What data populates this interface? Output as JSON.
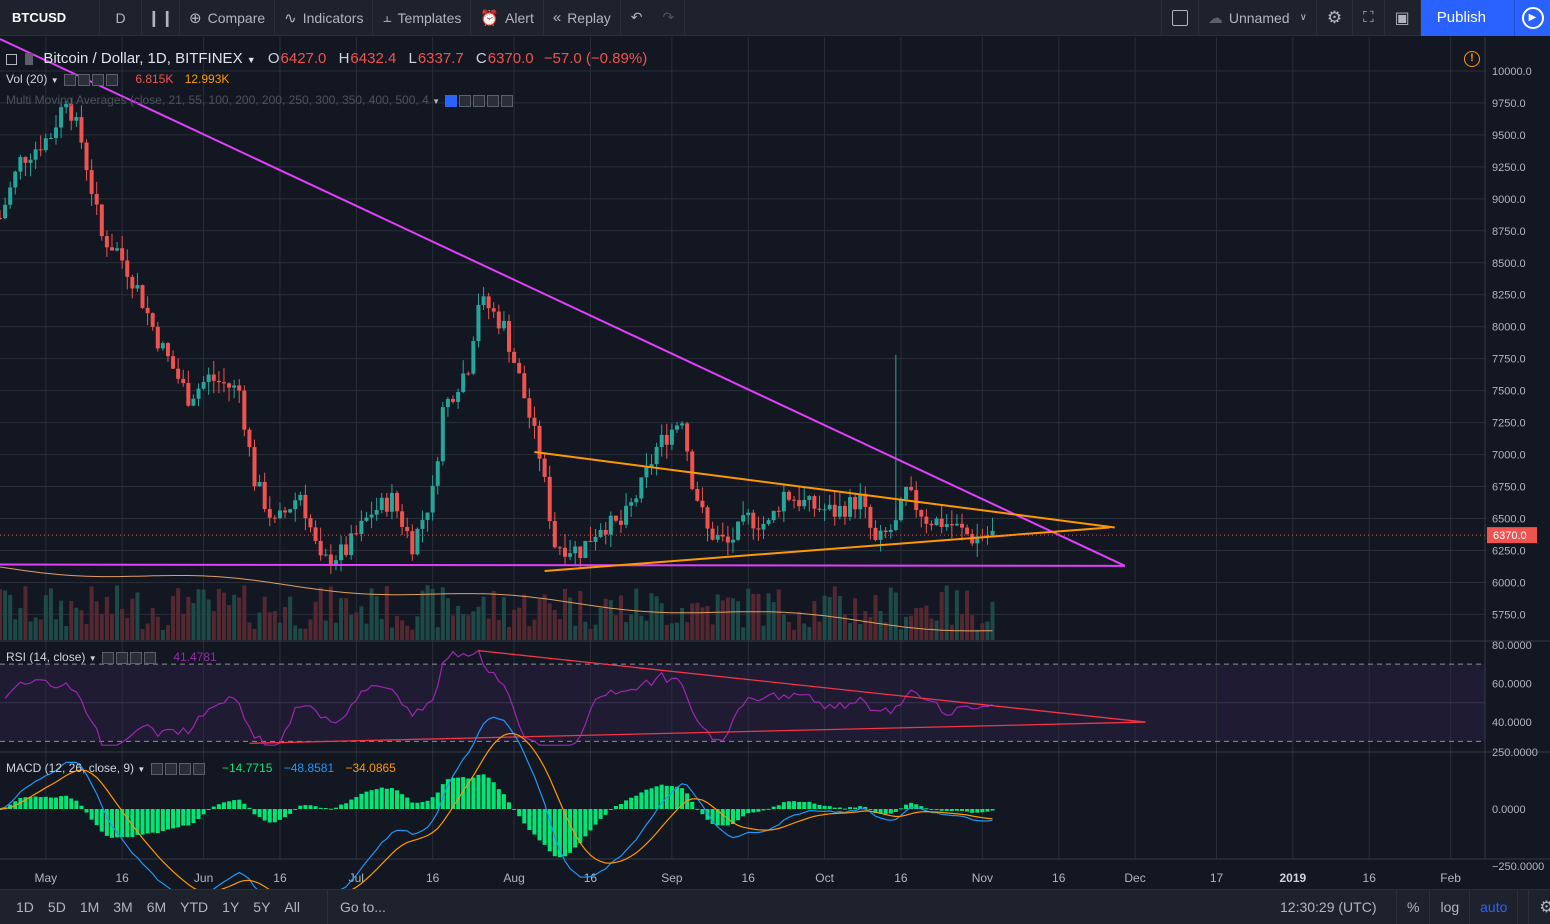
{
  "toolbar": {
    "symbol": "BTCUSD",
    "interval": "D",
    "compare": "Compare",
    "indicators": "Indicators",
    "templates": "Templates",
    "alert": "Alert",
    "replay": "Replay",
    "layout_name": "Unnamed",
    "publish": "Publish"
  },
  "legend": {
    "title": "Bitcoin / Dollar, 1D, BITFINEX",
    "open_label": "O",
    "open": "6427.0",
    "high_label": "H",
    "high": "6432.4",
    "low_label": "L",
    "low": "6337.7",
    "close_label": "C",
    "close": "6370.0",
    "change": "−57.0 (−0.89%)",
    "vol_label": "Vol (20)",
    "vol_value": "6.815K",
    "vol_ma": "12.993K",
    "ma_label": "Multi Moving Averages (close, 21, 55, 100, 200, 200, 250, 300, 350, 400, 500, 4",
    "rsi_label": "RSI (14, close)",
    "rsi_value": "41.4781",
    "macd_label": "MACD (12, 26, close, 9)",
    "macd_hist": "−14.7715",
    "macd_line": "−48.8581",
    "macd_signal": "−34.0865"
  },
  "colors": {
    "background": "#131722",
    "grid": "#2a2e39",
    "up": "#26a69a",
    "down": "#ef5350",
    "magenta_line": "#e040fb",
    "orange_line": "#ff9800",
    "rsi": "#9c27b0",
    "macd_hist": "#00e676",
    "macd_line": "#2196f3",
    "macd_signal": "#ff9800",
    "accent": "#2962ff"
  },
  "bottombar": {
    "ranges": [
      "1D",
      "5D",
      "1M",
      "3M",
      "6M",
      "YTD",
      "1Y",
      "5Y",
      "All"
    ],
    "goto": "Go to...",
    "clock": "12:30:29 (UTC)",
    "percent": "%",
    "log": "log",
    "auto": "auto"
  },
  "chart_data": [
    {
      "type": "candlestick",
      "title": "Bitcoin / Dollar, 1D, BITFINEX",
      "x_range": [
        "2018-04-22",
        "2019-02-10"
      ],
      "ylim": [
        5550,
        10250
      ],
      "y_ticks": [
        "10000.0",
        "9750.0",
        "9500.0",
        "9250.0",
        "9000.0",
        "8750.0",
        "8500.0",
        "8250.0",
        "8000.0",
        "7750.0",
        "7500.0",
        "7250.0",
        "7000.0",
        "6750.0",
        "6500.0",
        "6250.0",
        "6000.0",
        "5750.0"
      ],
      "x_ticks": [
        "May",
        "16",
        "Jun",
        "16",
        "Jul",
        "16",
        "Aug",
        "16",
        "Sep",
        "16",
        "Oct",
        "16",
        "Nov",
        "16",
        "Dec",
        "17",
        "2019",
        "16",
        "Feb"
      ],
      "last_price_label": "6370.0",
      "trendlines": [
        {
          "color": "#e040fb",
          "from": [
            "2018-04-22",
            10250
          ],
          "to": [
            "2018-11-29",
            6130
          ]
        },
        {
          "color": "#e040fb",
          "from": [
            "2018-04-22",
            6140
          ],
          "to": [
            "2018-11-29",
            6130
          ]
        },
        {
          "color": "#ff9800",
          "from": [
            "2018-08-05",
            7020
          ],
          "to": [
            "2018-11-27",
            6430
          ]
        },
        {
          "color": "#ff9800",
          "from": [
            "2018-08-07",
            6090
          ],
          "to": [
            "2018-11-26",
            6430
          ]
        }
      ],
      "price_path": [
        [
          "2018-04-22",
          8850
        ],
        [
          "2018-04-26",
          9300
        ],
        [
          "2018-05-02",
          9500
        ],
        [
          "2018-05-05",
          9800
        ],
        [
          "2018-05-08",
          9450
        ],
        [
          "2018-05-12",
          8700
        ],
        [
          "2018-05-15",
          8600
        ],
        [
          "2018-05-19",
          8300
        ],
        [
          "2018-05-23",
          7900
        ],
        [
          "2018-05-29",
          7450
        ],
        [
          "2018-06-02",
          7600
        ],
        [
          "2018-06-08",
          7500
        ],
        [
          "2018-06-11",
          6800
        ],
        [
          "2018-06-15",
          6450
        ],
        [
          "2018-06-20",
          6700
        ],
        [
          "2018-06-24",
          6150
        ],
        [
          "2018-06-29",
          6250
        ],
        [
          "2018-07-04",
          6550
        ],
        [
          "2018-07-08",
          6650
        ],
        [
          "2018-07-12",
          6300
        ],
        [
          "2018-07-16",
          6700
        ],
        [
          "2018-07-18",
          7350
        ],
        [
          "2018-07-23",
          7700
        ],
        [
          "2018-07-25",
          8200
        ],
        [
          "2018-07-27",
          8150
        ],
        [
          "2018-07-30",
          8000
        ],
        [
          "2018-08-02",
          7600
        ],
        [
          "2018-08-06",
          7000
        ],
        [
          "2018-08-09",
          6300
        ],
        [
          "2018-08-14",
          6250
        ],
        [
          "2018-08-18",
          6450
        ],
        [
          "2018-08-22",
          6450
        ],
        [
          "2018-08-26",
          6750
        ],
        [
          "2018-08-29",
          7050
        ],
        [
          "2018-09-03",
          7300
        ],
        [
          "2018-09-05",
          6800
        ],
        [
          "2018-09-08",
          6400
        ],
        [
          "2018-09-12",
          6300
        ],
        [
          "2018-09-16",
          6500
        ],
        [
          "2018-09-20",
          6450
        ],
        [
          "2018-09-23",
          6700
        ],
        [
          "2018-09-28",
          6600
        ],
        [
          "2018-10-03",
          6550
        ],
        [
          "2018-10-08",
          6650
        ],
        [
          "2018-10-11",
          6300
        ],
        [
          "2018-10-15",
          6450
        ],
        [
          "2018-10-17",
          6700
        ],
        [
          "2018-10-21",
          6500
        ],
        [
          "2018-10-26",
          6450
        ],
        [
          "2018-10-30",
          6350
        ],
        [
          "2018-11-03",
          6380
        ]
      ]
    },
    {
      "type": "bar",
      "name": "Vol (20)",
      "values_label": [
        "6.815K",
        "12.993K"
      ]
    },
    {
      "type": "line",
      "name": "RSI (14, close)",
      "ylim": [
        25,
        82
      ],
      "y_ticks": [
        "80.0000",
        "60.0000",
        "40.0000"
      ],
      "bands": [
        70,
        30
      ],
      "value": 41.4781,
      "trendlines": [
        {
          "color": "#f23645",
          "from": [
            "2018-07-25",
            77
          ],
          "to": [
            "2018-12-03",
            40
          ]
        },
        {
          "color": "#f23645",
          "from": [
            "2018-06-10",
            29
          ],
          "to": [
            "2018-12-03",
            40
          ]
        }
      ]
    },
    {
      "type": "bar",
      "name": "MACD (12, 26, close, 9)",
      "ylim": [
        -350,
        350
      ],
      "y_ticks": [
        "250.0000",
        "0.0000",
        "−250.0000"
      ],
      "values": {
        "histogram": -14.7715,
        "macd": -48.8581,
        "signal": -34.0865
      }
    }
  ]
}
